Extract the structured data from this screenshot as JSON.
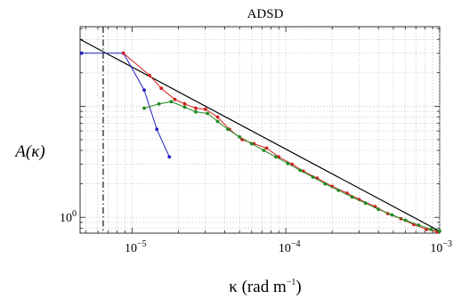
{
  "chart_data": {
    "type": "line",
    "title": "ADSD",
    "xlabel": {
      "main": "κ (rad m",
      "sup": "−1",
      "close": ")"
    },
    "ylabel": "A(κ)",
    "x_scale": "log",
    "y_scale": "log",
    "xlim": [
      4.6e-06,
      0.001
    ],
    "ylim": [
      0.72,
      52
    ],
    "x_ticks": [
      {
        "value": 1e-05,
        "base": "10",
        "exp": "−5"
      },
      {
        "value": 0.0001,
        "base": "10",
        "exp": "−4"
      },
      {
        "value": 0.001,
        "base": "10",
        "exp": "−3"
      }
    ],
    "y_ticks": [
      {
        "value": 1,
        "base": "10",
        "exp": "0"
      }
    ],
    "grid": true,
    "vline": {
      "x": 6.5e-06,
      "style": "dash-dot",
      "color": "#000000"
    },
    "fit_line": {
      "x": [
        4.6e-06,
        0.001
      ],
      "y": [
        40,
        0.75
      ],
      "color": "#000000"
    },
    "series": [
      {
        "color": "#2020c0",
        "x": [
          4.7e-06,
          8.8e-06,
          1.2e-05,
          1.45e-05,
          1.75e-05
        ],
        "y": [
          30,
          30,
          14,
          6.2,
          3.5
        ]
      },
      {
        "color": "#d42020",
        "x": [
          8.8e-06,
          1.3e-05,
          1.55e-05,
          1.9e-05,
          2.2e-05,
          2.6e-05,
          3e-05,
          3.6e-05,
          4.3e-05,
          5.2e-05,
          6.2e-05,
          7.5e-05,
          9e-05,
          0.00011,
          0.00013,
          0.00016,
          0.0002,
          0.00025,
          0.0003,
          0.00038,
          0.00046,
          0.00056,
          0.00068,
          0.00082,
          0.00096
        ],
        "y": [
          30,
          19,
          14.5,
          11.5,
          10.5,
          9.6,
          9.4,
          8.0,
          6.2,
          5.0,
          4.6,
          4.2,
          3.5,
          3.0,
          2.6,
          2.25,
          1.9,
          1.65,
          1.45,
          1.25,
          1.08,
          0.97,
          0.86,
          0.78,
          0.74
        ]
      },
      {
        "color": "#208a20",
        "x": [
          1.2e-05,
          1.5e-05,
          1.8e-05,
          2.2e-05,
          2.6e-05,
          3.1e-05,
          3.6e-05,
          4.2e-05,
          5e-05,
          6e-05,
          7.2e-05,
          8.6e-05,
          0.000103,
          0.000124,
          0.00015,
          0.00018,
          0.00022,
          0.00027,
          0.00033,
          0.0004,
          0.00049,
          0.0006,
          0.00073,
          0.00088,
          0.001
        ],
        "y": [
          9.6,
          10.5,
          11.0,
          9.8,
          8.9,
          8.6,
          7.3,
          6.2,
          5.3,
          4.6,
          4.0,
          3.5,
          3.05,
          2.65,
          2.3,
          2.0,
          1.75,
          1.52,
          1.34,
          1.18,
          1.05,
          0.94,
          0.85,
          0.78,
          0.75
        ]
      }
    ]
  }
}
